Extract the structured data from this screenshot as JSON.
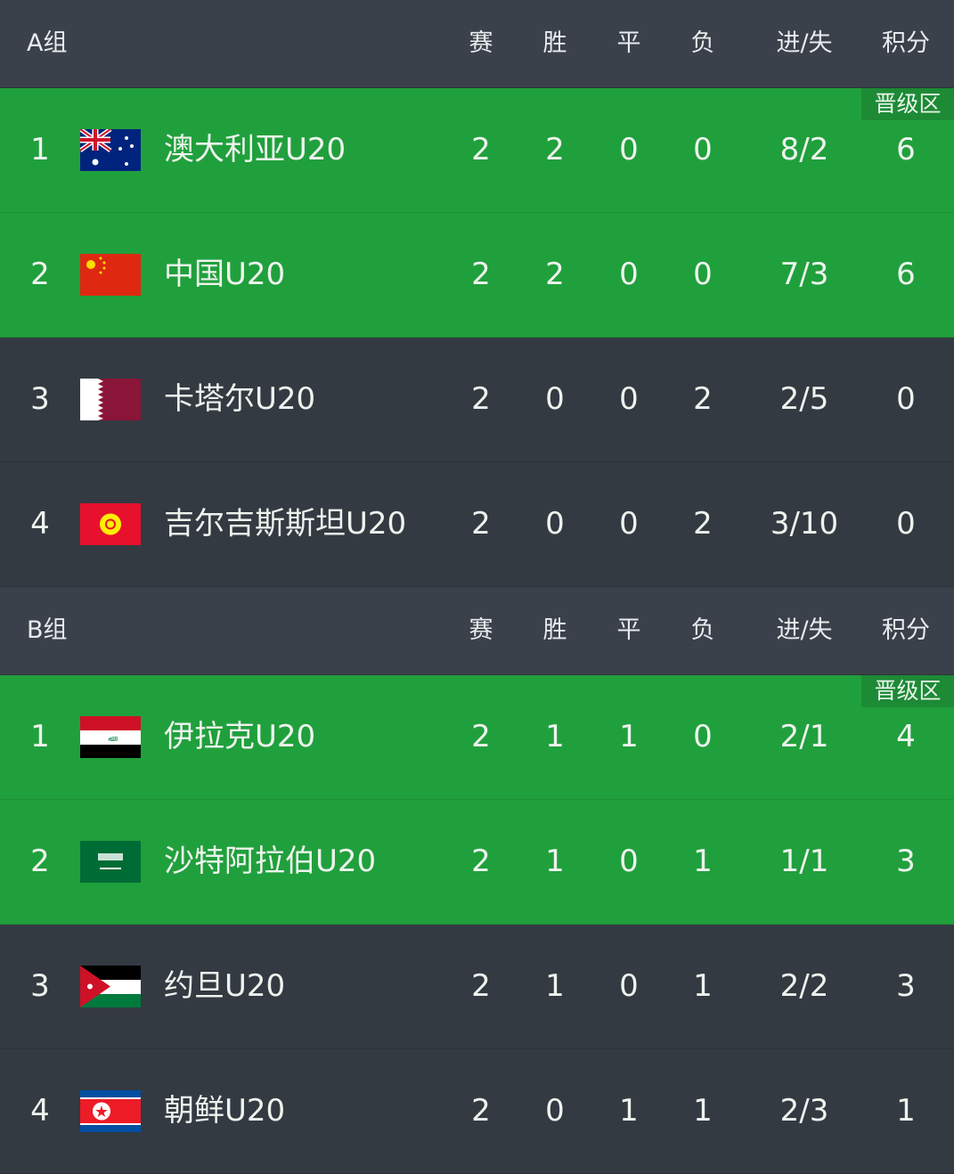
{
  "groups": [
    {
      "name": "A组",
      "headers": [
        "赛",
        "胜",
        "平",
        "负",
        "进/失",
        "积分"
      ],
      "badge": "晋级区",
      "rows": [
        {
          "rank": "1",
          "flag": "australia-flag",
          "team": "澳大利亚U20",
          "p": "2",
          "w": "2",
          "d": "0",
          "l": "0",
          "gd": "8/2",
          "pts": "6",
          "qualified": true
        },
        {
          "rank": "2",
          "flag": "china-flag",
          "team": "中国U20",
          "p": "2",
          "w": "2",
          "d": "0",
          "l": "0",
          "gd": "7/3",
          "pts": "6",
          "qualified": true
        },
        {
          "rank": "3",
          "flag": "qatar-flag",
          "team": "卡塔尔U20",
          "p": "2",
          "w": "0",
          "d": "0",
          "l": "2",
          "gd": "2/5",
          "pts": "0",
          "qualified": false
        },
        {
          "rank": "4",
          "flag": "kyrgyzstan-flag",
          "team": "吉尔吉斯斯坦U20",
          "p": "2",
          "w": "0",
          "d": "0",
          "l": "2",
          "gd": "3/10",
          "pts": "0",
          "qualified": false
        }
      ]
    },
    {
      "name": "B组",
      "headers": [
        "赛",
        "胜",
        "平",
        "负",
        "进/失",
        "积分"
      ],
      "badge": "晋级区",
      "rows": [
        {
          "rank": "1",
          "flag": "iraq-flag",
          "team": "伊拉克U20",
          "p": "2",
          "w": "1",
          "d": "1",
          "l": "0",
          "gd": "2/1",
          "pts": "4",
          "qualified": true
        },
        {
          "rank": "2",
          "flag": "saudi-arabia-flag",
          "team": "沙特阿拉伯U20",
          "p": "2",
          "w": "1",
          "d": "0",
          "l": "1",
          "gd": "1/1",
          "pts": "3",
          "qualified": true
        },
        {
          "rank": "3",
          "flag": "jordan-flag",
          "team": "约旦U20",
          "p": "2",
          "w": "1",
          "d": "0",
          "l": "1",
          "gd": "2/2",
          "pts": "3",
          "qualified": false
        },
        {
          "rank": "4",
          "flag": "north-korea-flag",
          "team": "朝鲜U20",
          "p": "2",
          "w": "0",
          "d": "1",
          "l": "1",
          "gd": "2/3",
          "pts": "1",
          "qualified": false
        }
      ]
    }
  ],
  "colors": {
    "qualified": "#20a03c",
    "header": "#3b414a",
    "row": "#333a42",
    "badge": "#1d8a35"
  }
}
